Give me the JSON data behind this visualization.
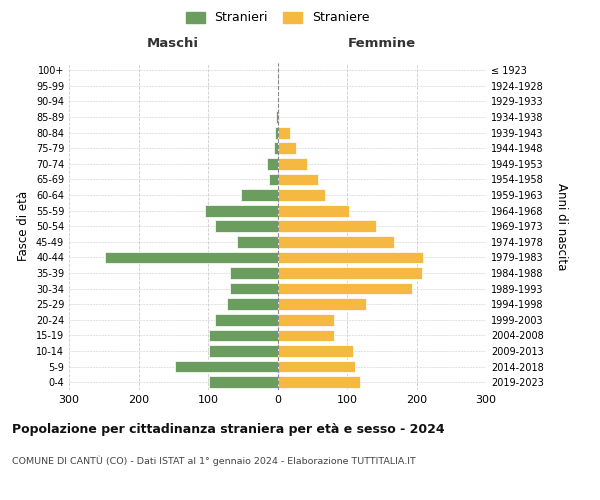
{
  "age_groups": [
    "100+",
    "95-99",
    "90-94",
    "85-89",
    "80-84",
    "75-79",
    "70-74",
    "65-69",
    "60-64",
    "55-59",
    "50-54",
    "45-49",
    "40-44",
    "35-39",
    "30-34",
    "25-29",
    "20-24",
    "15-19",
    "10-14",
    "5-9",
    "0-4"
  ],
  "birth_years": [
    "≤ 1923",
    "1924-1928",
    "1929-1933",
    "1934-1938",
    "1939-1943",
    "1944-1948",
    "1949-1953",
    "1954-1958",
    "1959-1963",
    "1964-1968",
    "1969-1973",
    "1974-1978",
    "1979-1983",
    "1984-1988",
    "1989-1993",
    "1994-1998",
    "1999-2003",
    "2004-2008",
    "2009-2013",
    "2014-2018",
    "2019-2023"
  ],
  "maschi": [
    0,
    0,
    0,
    2,
    3,
    5,
    15,
    12,
    52,
    105,
    90,
    58,
    248,
    68,
    68,
    72,
    90,
    98,
    98,
    148,
    98
  ],
  "femmine": [
    0,
    0,
    1,
    2,
    18,
    26,
    42,
    58,
    68,
    103,
    142,
    168,
    210,
    208,
    193,
    128,
    82,
    82,
    108,
    112,
    118
  ],
  "maschi_color": "#6b9e5e",
  "femmine_color": "#f5b942",
  "grid_color": "#cccccc",
  "title": "Popolazione per cittadinanza straniera per età e sesso - 2024",
  "subtitle": "COMUNE DI CANTÙ (CO) - Dati ISTAT al 1° gennaio 2024 - Elaborazione TUTTITALIA.IT",
  "legend_stranieri": "Stranieri",
  "legend_straniere": "Straniere",
  "header_left": "Maschi",
  "header_right": "Femmine",
  "ylabel_left": "Fasce di età",
  "ylabel_right": "Anni di nascita",
  "xlim": 300
}
